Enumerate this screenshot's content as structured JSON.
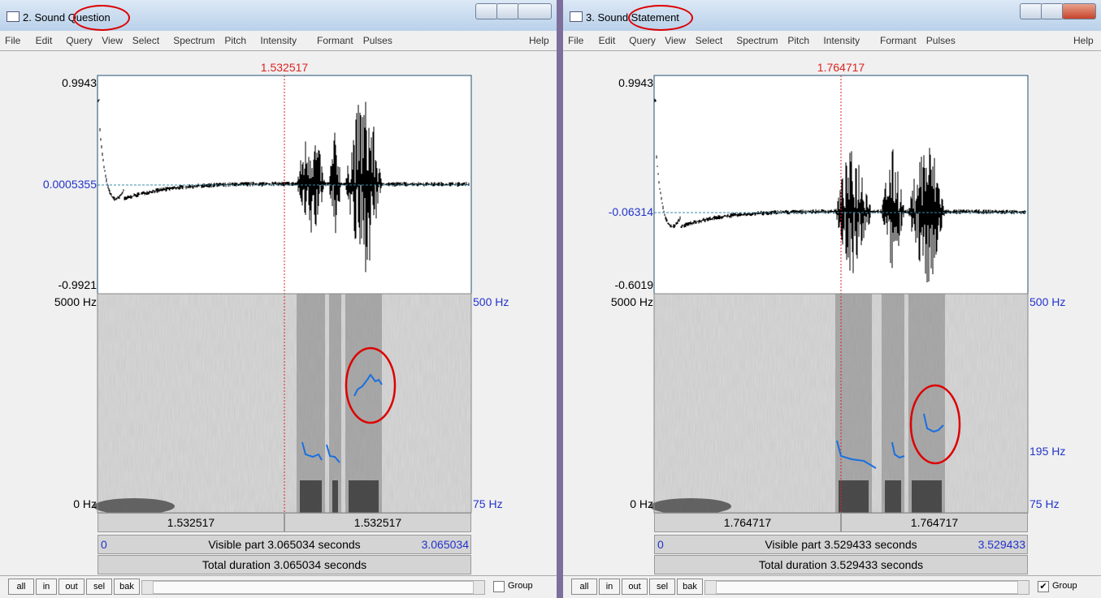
{
  "windows": [
    {
      "title": "2. Sound Question",
      "menu": [
        "File",
        "Edit",
        "Query",
        "View",
        "Select",
        "Spectrum",
        "Pitch",
        "Intensity",
        "Formant",
        "Pulses"
      ],
      "help": "Help",
      "cursor_time": "1.532517",
      "wave_labels": {
        "max": "0.9943",
        "mid": "0.0005355",
        "min": "-0.9921"
      },
      "freq_labels": {
        "top": "5000 Hz",
        "bottom": "0 Hz"
      },
      "pitch_labels": [
        "500 Hz",
        "75 Hz"
      ],
      "times": [
        "1.532517",
        "1.532517"
      ],
      "visible": {
        "start": "0",
        "text": "Visible part 3.065034 seconds",
        "end": "3.065034"
      },
      "total": "Total duration 3.065034 seconds",
      "buttons": [
        "all",
        "in",
        "out",
        "sel",
        "bak"
      ],
      "group": {
        "label": "Group",
        "checked": false
      }
    },
    {
      "title": "3. Sound Statement",
      "menu": [
        "File",
        "Edit",
        "Query",
        "View",
        "Select",
        "Spectrum",
        "Pitch",
        "Intensity",
        "Formant",
        "Pulses"
      ],
      "help": "Help",
      "cursor_time": "1.764717",
      "wave_labels": {
        "max": "0.9943",
        "mid": "-0.06314",
        "min": "-0.6019"
      },
      "freq_labels": {
        "top": "5000 Hz",
        "bottom": "0 Hz"
      },
      "pitch_labels": [
        "500 Hz",
        "195 Hz",
        "75 Hz"
      ],
      "times": [
        "1.764717",
        "1.764717"
      ],
      "visible": {
        "start": "0",
        "text": "Visible part 3.529433 seconds",
        "end": "3.529433"
      },
      "total": "Total duration 3.529433 seconds",
      "buttons": [
        "all",
        "in",
        "out",
        "sel",
        "bak"
      ],
      "group": {
        "label": "Group",
        "checked": true
      }
    }
  ]
}
